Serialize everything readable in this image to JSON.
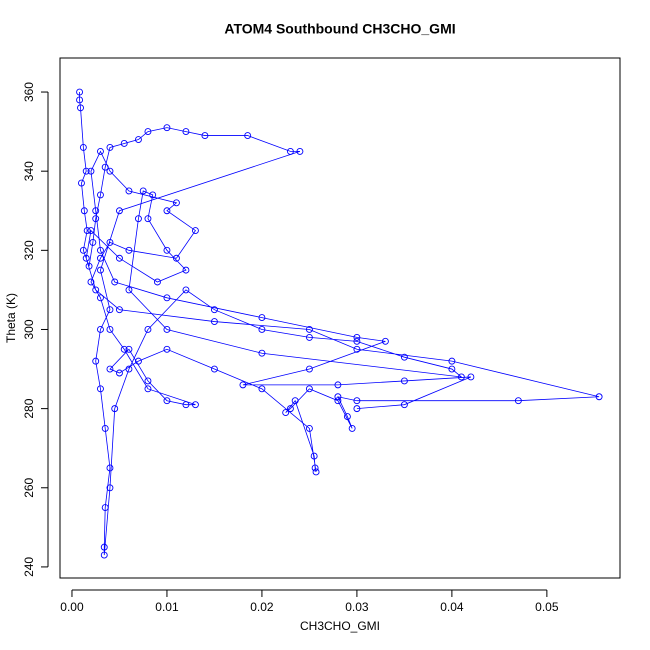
{
  "chart_data": {
    "type": "line",
    "markers": true,
    "title": "ATOM4 Southbound CH3CHO_GMI",
    "xlabel": "CH3CHO_GMI",
    "ylabel": "Theta (K)",
    "color": "#0000ff",
    "xlim": [
      -0.00126,
      0.0577
    ],
    "ylim": [
      237.2,
      368.6
    ],
    "xticks": [
      {
        "value": 0,
        "label": "0.00"
      },
      {
        "value": 0.01,
        "label": "0.01"
      },
      {
        "value": 0.02,
        "label": "0.02"
      },
      {
        "value": 0.03,
        "label": "0.03"
      },
      {
        "value": 0.04,
        "label": "0.04"
      },
      {
        "value": 0.05,
        "label": "0.05"
      }
    ],
    "yticks": [
      240,
      260,
      280,
      300,
      320,
      340,
      360
    ],
    "x": [
      0.0008,
      0.0008,
      0.0009,
      0.0012,
      0.0015,
      0.001,
      0.0013,
      0.0016,
      0.0012,
      0.0018,
      0.0022,
      0.0025,
      0.003,
      0.0035,
      0.004,
      0.0055,
      0.007,
      0.008,
      0.01,
      0.012,
      0.014,
      0.0185,
      0.023,
      0.024,
      0.005,
      0.003,
      0.004,
      0.003,
      0.0025,
      0.003,
      0.0035,
      0.004,
      0.0035,
      0.0034,
      0.0034,
      0.004,
      0.0045,
      0.006,
      0.008,
      0.012,
      0.015,
      0.02,
      0.025,
      0.03,
      0.035,
      0.04,
      0.041,
      0.02,
      0.01,
      0.006,
      0.007,
      0.0075,
      0.0085,
      0.008,
      0.01,
      0.012,
      0.009,
      0.005,
      0.002,
      0.0015,
      0.0025,
      0.005,
      0.015,
      0.025,
      0.03,
      0.04,
      0.0555,
      0.047,
      0.03,
      0.028,
      0.029,
      0.0295,
      0.028,
      0.025,
      0.023,
      0.0225,
      0.0235,
      0.0255,
      0.0256,
      0.0257,
      0.025,
      0.02,
      0.015,
      0.01,
      0.007,
      0.005,
      0.004,
      0.006,
      0.008,
      0.01,
      0.012,
      0.013,
      0.008,
      0.0055,
      0.004,
      0.003,
      0.002,
      0.003,
      0.004,
      0.006,
      0.011,
      0.013,
      0.01,
      0.011,
      0.006,
      0.004,
      0.003,
      0.002,
      0.0025,
      0.003,
      0.0045,
      0.01,
      0.02,
      0.03,
      0.033,
      0.025,
      0.018,
      0.028,
      0.035,
      0.042,
      0.035,
      0.03
    ],
    "values": [
      360,
      358,
      356,
      346,
      340,
      337,
      330,
      325,
      320,
      316,
      322,
      328,
      334,
      341,
      346,
      347,
      348,
      350,
      351,
      350,
      349,
      349,
      345,
      345,
      330,
      315,
      305,
      300,
      292,
      285,
      275,
      265,
      255,
      245,
      243,
      260,
      280,
      290,
      300,
      310,
      305,
      300,
      298,
      297,
      293,
      290,
      288,
      294,
      300,
      310,
      328,
      335,
      334,
      328,
      320,
      315,
      312,
      318,
      325,
      318,
      310,
      305,
      302,
      300,
      295,
      292,
      283,
      282,
      282,
      283,
      278,
      275,
      282,
      285,
      280,
      279,
      282,
      268,
      265,
      264,
      275,
      285,
      290,
      295,
      292,
      289,
      290,
      295,
      287,
      282,
      281,
      281,
      285,
      295,
      300,
      308,
      312,
      318,
      322,
      320,
      318,
      325,
      330,
      332,
      335,
      340,
      345,
      340,
      330,
      320,
      312,
      308,
      303,
      298,
      297,
      290,
      286,
      286,
      287,
      288,
      281,
      280
    ]
  }
}
